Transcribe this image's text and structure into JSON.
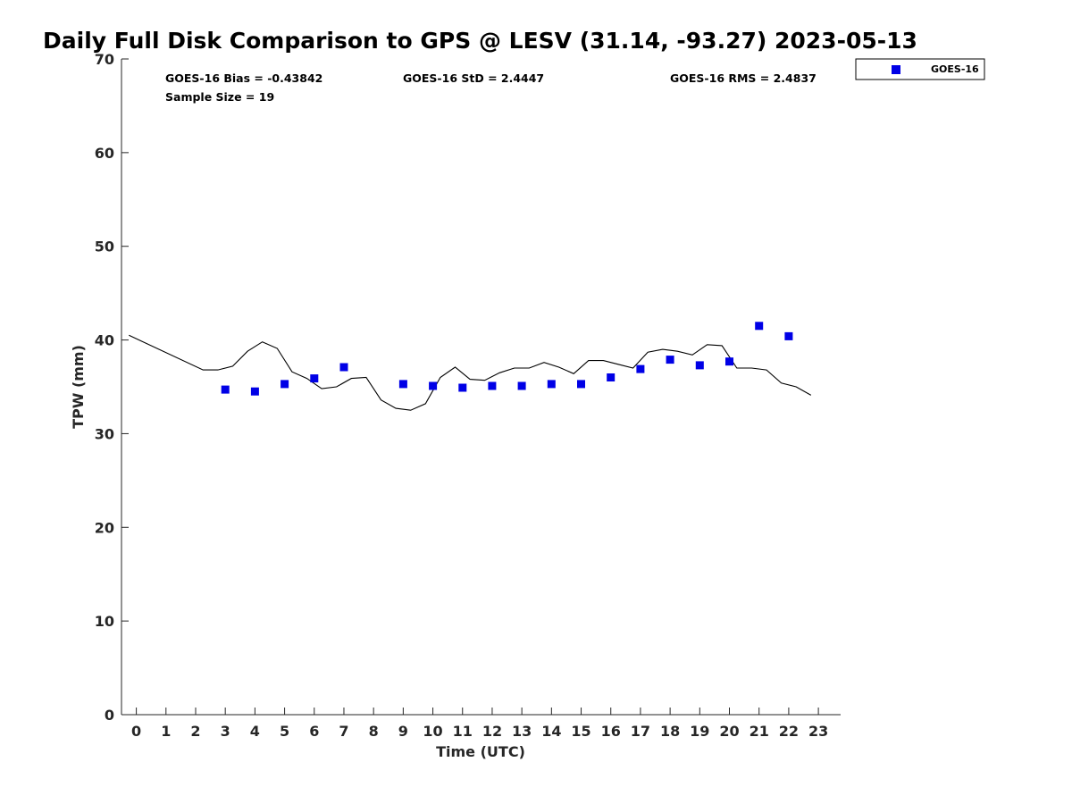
{
  "chart_data": {
    "type": "scatter",
    "title": "Daily Full Disk Comparison to GPS @ LESV (31.14, -93.27) 2023-05-13",
    "xlabel": "Time (UTC)",
    "ylabel": "TPW (mm)",
    "xlim": [
      -0.5,
      23.75
    ],
    "ylim": [
      0,
      70
    ],
    "x_ticks": [
      "0",
      "1",
      "2",
      "3",
      "4",
      "5",
      "6",
      "7",
      "8",
      "9",
      "10",
      "11",
      "12",
      "13",
      "14",
      "15",
      "16",
      "17",
      "18",
      "19",
      "20",
      "21",
      "22",
      "23"
    ],
    "y_ticks": [
      "0",
      "10",
      "20",
      "30",
      "40",
      "50",
      "60",
      "70"
    ],
    "grid": false,
    "legend_position": "top-right outside",
    "stats": {
      "bias": "GOES-16 Bias = -0.43842",
      "std": "GOES-16 StD = 2.4447",
      "rms": "GOES-16 RMS = 2.4837",
      "sample_size": "Sample Size = 19"
    },
    "series": [
      {
        "name": "GOES-16",
        "kind": "scatter",
        "marker": "square",
        "color": "#0000e6",
        "x": [
          3,
          4,
          5,
          6,
          7,
          9,
          10,
          11,
          12,
          13,
          14,
          15,
          16,
          17,
          18,
          19,
          20,
          21,
          22
        ],
        "y": [
          34.7,
          34.5,
          35.3,
          35.9,
          37.1,
          35.3,
          35.1,
          34.9,
          35.1,
          35.1,
          35.3,
          35.3,
          36.0,
          36.9,
          37.9,
          37.3,
          37.7,
          41.5,
          40.4
        ]
      },
      {
        "kind": "line",
        "color": "#000000",
        "x": [
          -0.25,
          2.25,
          2.75,
          3.25,
          3.75,
          4.25,
          4.75,
          5.25,
          5.75,
          6.25,
          6.75,
          7.25,
          7.75,
          8.25,
          8.75,
          9.25,
          9.75,
          10.25,
          10.75,
          11.25,
          11.75,
          12.25,
          12.75,
          13.25,
          13.75,
          14.25,
          14.75,
          15.25,
          15.75,
          16.25,
          16.75,
          17.25,
          17.75,
          18.25,
          18.75,
          19.25,
          19.75,
          20.25,
          20.75,
          21.25,
          21.75,
          22.25,
          22.75
        ],
        "y": [
          40.5,
          36.8,
          36.8,
          37.2,
          38.8,
          39.8,
          39.1,
          36.6,
          35.9,
          34.8,
          35.0,
          35.9,
          36.0,
          33.6,
          32.7,
          32.5,
          33.2,
          36.0,
          37.1,
          35.8,
          35.7,
          36.5,
          37.0,
          37.0,
          37.6,
          37.1,
          36.4,
          37.8,
          37.8,
          37.4,
          37.0,
          38.7,
          39.0,
          38.8,
          38.4,
          39.5,
          39.4,
          37.0,
          37.0,
          36.8,
          35.4,
          35.0,
          34.1
        ]
      }
    ]
  }
}
